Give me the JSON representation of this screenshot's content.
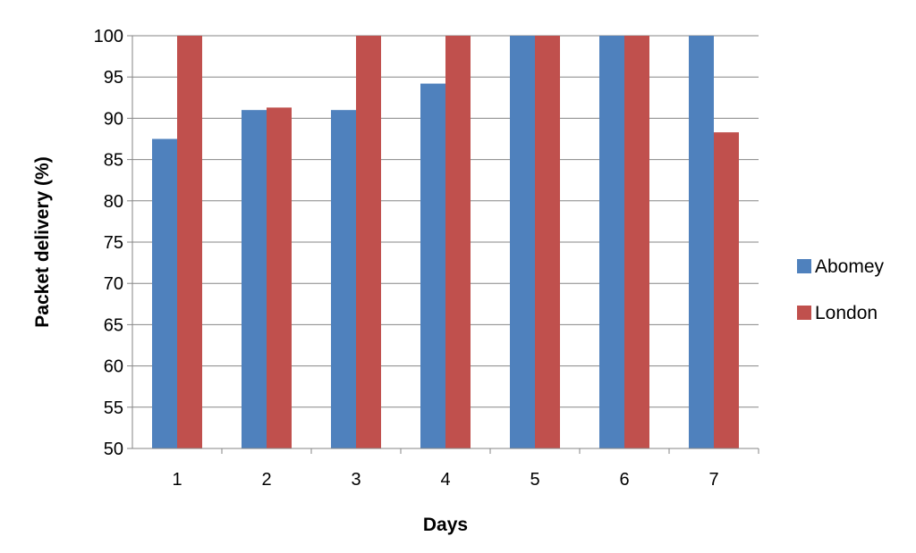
{
  "chart_data": {
    "type": "bar",
    "title": "",
    "xlabel": "Days",
    "ylabel": "Packet delivery (%)",
    "categories": [
      "1",
      "2",
      "3",
      "4",
      "5",
      "6",
      "7"
    ],
    "series": [
      {
        "name": "Abomey",
        "color": "#4F81BD",
        "values": [
          87.5,
          91,
          91,
          94.2,
          100,
          100,
          100
        ]
      },
      {
        "name": "London",
        "color": "#C0504D",
        "values": [
          100,
          91.3,
          100,
          100,
          100,
          100,
          88.3
        ]
      }
    ],
    "ylim": [
      50,
      100
    ],
    "yticks": [
      50,
      55,
      60,
      65,
      70,
      75,
      80,
      85,
      90,
      95,
      100
    ],
    "grid": true,
    "legend_position": "right"
  }
}
